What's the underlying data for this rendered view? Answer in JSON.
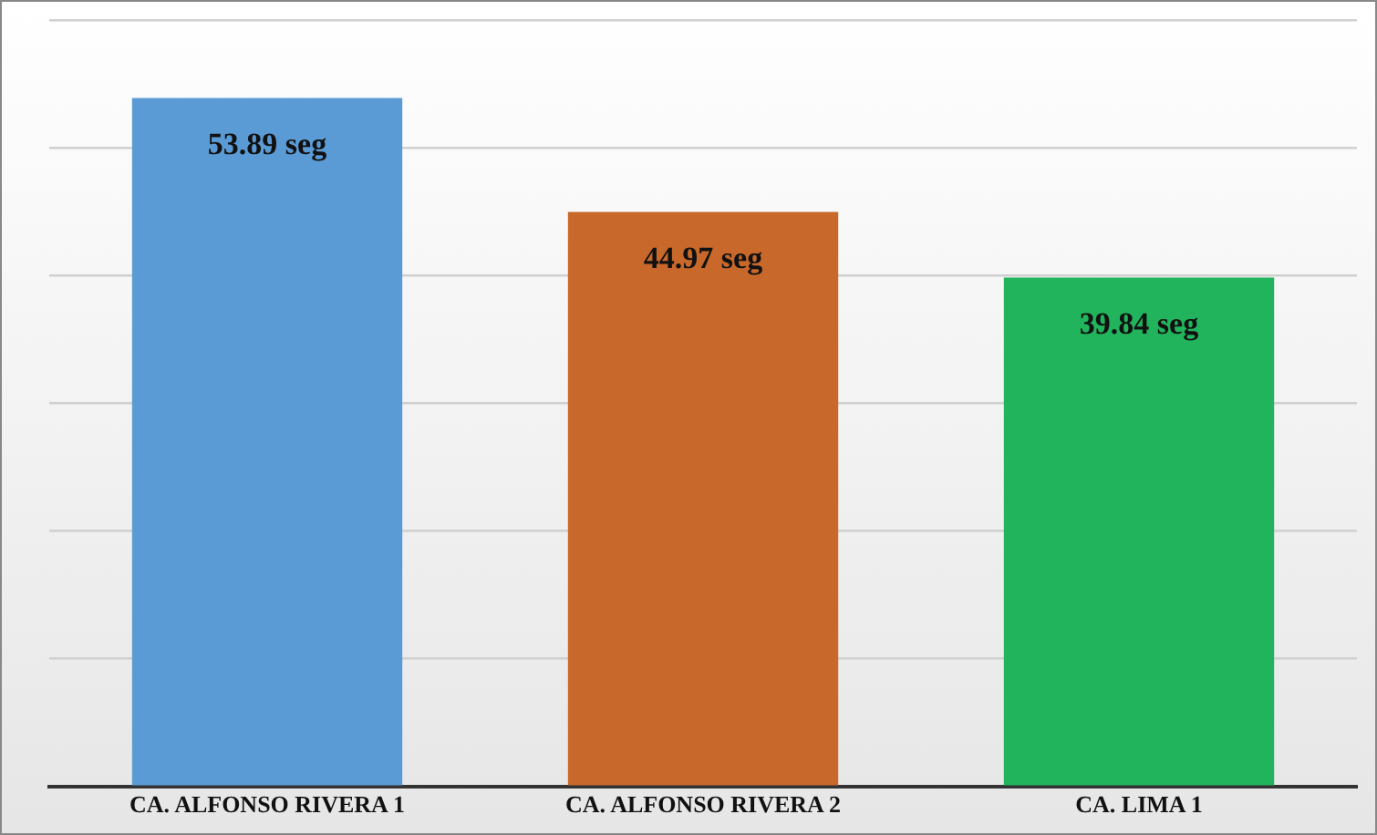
{
  "chart_data": {
    "type": "bar",
    "categories": [
      "CA. ALFONSO RIVERA 1",
      "CA. ALFONSO RIVERA 2",
      "CA. LIMA 1"
    ],
    "values": [
      53.89,
      44.97,
      39.84
    ],
    "colors": [
      "#5b9bd5",
      "#c8682b",
      "#22b45c"
    ],
    "value_labels": [
      "53.89 seg",
      "44.97 seg",
      "39.84 seg"
    ],
    "ylim": [
      0,
      60
    ],
    "yticks": [
      {
        "value": 0,
        "label": null
      },
      {
        "value": 10,
        "label": null
      },
      {
        "value": 20,
        "label": null
      },
      {
        "value": 30,
        "label": null
      },
      {
        "value": 40,
        "label": null
      },
      {
        "value": 50,
        "label": null
      },
      {
        "value": 60,
        "label": null
      }
    ],
    "grid": "y",
    "tick_labels": "x",
    "legend": false
  }
}
